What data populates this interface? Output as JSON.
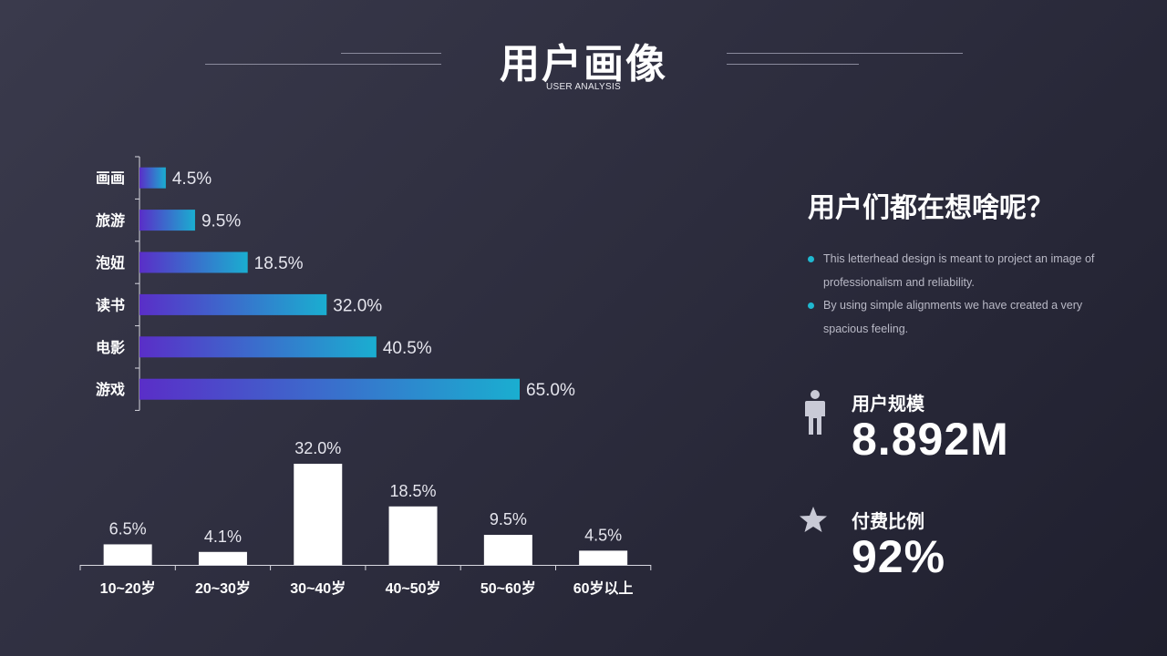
{
  "header": {
    "title": "用户画像",
    "subtitle": "USER ANALYSIS"
  },
  "side": {
    "heading": "用户们都在想啥呢？",
    "bullets": [
      "This letterhead design is meant to project an image of professionalism  and reliability.",
      "By using simple alignments we have created a very spacious feeling."
    ],
    "bullet_color": "#1fb8d0",
    "stats": [
      {
        "label": "用户规模",
        "value": "8.892M",
        "icon": "person-icon"
      },
      {
        "label": "付费比例",
        "value": "92%",
        "icon": "star-icon"
      }
    ]
  },
  "chart_data": [
    {
      "type": "bar",
      "orientation": "horizontal",
      "categories": [
        "画画",
        "旅游",
        "泡妞",
        "读书",
        "电影",
        "游戏"
      ],
      "values": [
        4.5,
        9.5,
        18.5,
        32.0,
        40.5,
        65.0
      ],
      "data_labels": [
        "4.5%",
        "9.5%",
        "18.5%",
        "32.0%",
        "40.5%",
        "65.0%"
      ],
      "xlim": [
        0,
        65
      ],
      "gradient": [
        "#5a2ec8",
        "#1aaed0"
      ]
    },
    {
      "type": "bar",
      "orientation": "vertical",
      "categories": [
        "10~20岁",
        "20~30岁",
        "30~40岁",
        "40~50岁",
        "50~60岁",
        "60岁以上"
      ],
      "values": [
        6.5,
        4.1,
        32.0,
        18.5,
        9.5,
        4.5
      ],
      "data_labels": [
        "6.5%",
        "4.1%",
        "32.0%",
        "18.5%",
        "9.5%",
        "4.5%"
      ],
      "ylim": [
        0,
        32
      ],
      "bar_color": "#ffffff"
    }
  ]
}
